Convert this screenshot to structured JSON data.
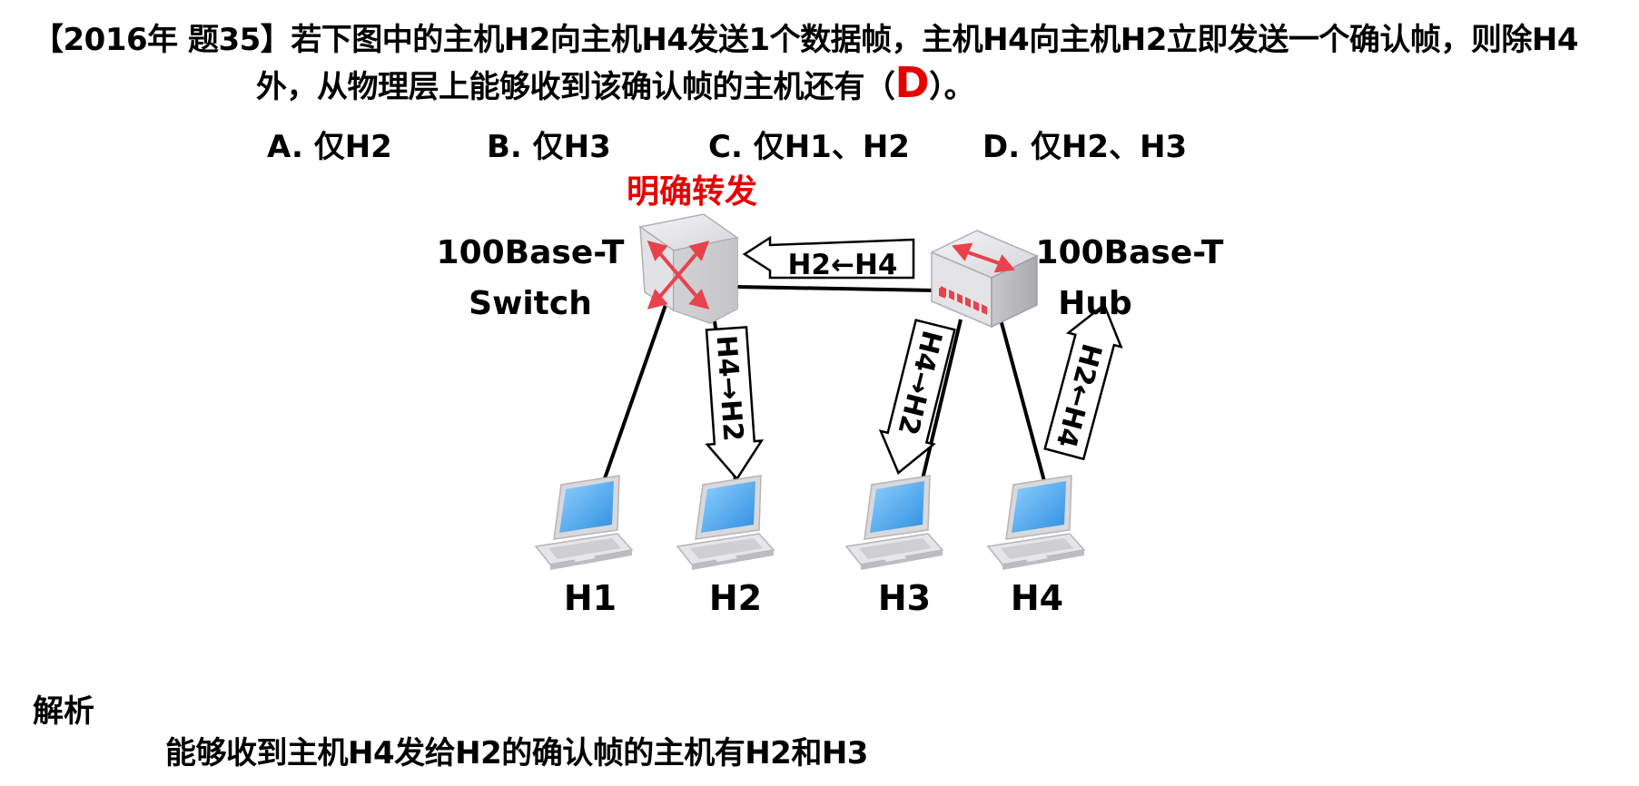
{
  "question": {
    "line1": "【2016年 题35】若下图中的主机H2向主机H4发送1个数据帧，主机H4向主机H2立即发送一个确认帧，则除H4",
    "line2_before": "外，从物理层上能够收到该确认帧的主机还有（",
    "answer": "D",
    "line2_after": "）。"
  },
  "options": [
    {
      "label": "A. 仅H2"
    },
    {
      "label": "B. 仅H3"
    },
    {
      "label": "C. 仅H1、H2"
    },
    {
      "label": "D. 仅H2、H3"
    }
  ],
  "diagram": {
    "switch_note": "明确转发",
    "switch_label_1": "100Base-T",
    "switch_label_2": "Switch",
    "hub_label_1": "100Base-T",
    "hub_label_2": "Hub",
    "arrow_hub_to_switch": "H2←H4",
    "arrow_switch_to_h2": "H4→H2",
    "arrow_hub_to_h3": "H4→H2",
    "arrow_h4_to_hub": "H2←H4",
    "hosts": [
      "H1",
      "H2",
      "H3",
      "H4"
    ],
    "colors": {
      "accent_red": "#e60000",
      "device_red": "#e8424c",
      "screen_blue": "#3b9ee8"
    }
  },
  "analysis": {
    "heading": "解析",
    "text": "能够收到主机H4发给H2的确认帧的主机有H2和H3"
  }
}
